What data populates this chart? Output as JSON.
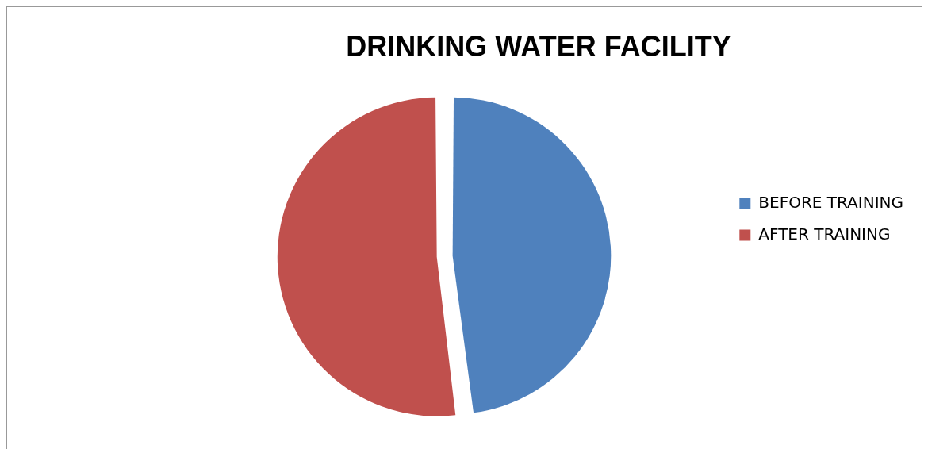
{
  "chart_data": {
    "type": "pie",
    "title": "DRINKING WATER FACILITY",
    "categories": [
      "BEFORE TRAINING",
      "AFTER TRAINING"
    ],
    "values": [
      48,
      52
    ],
    "colors": [
      "#4f81bd",
      "#c0504d"
    ],
    "legend": "right"
  }
}
